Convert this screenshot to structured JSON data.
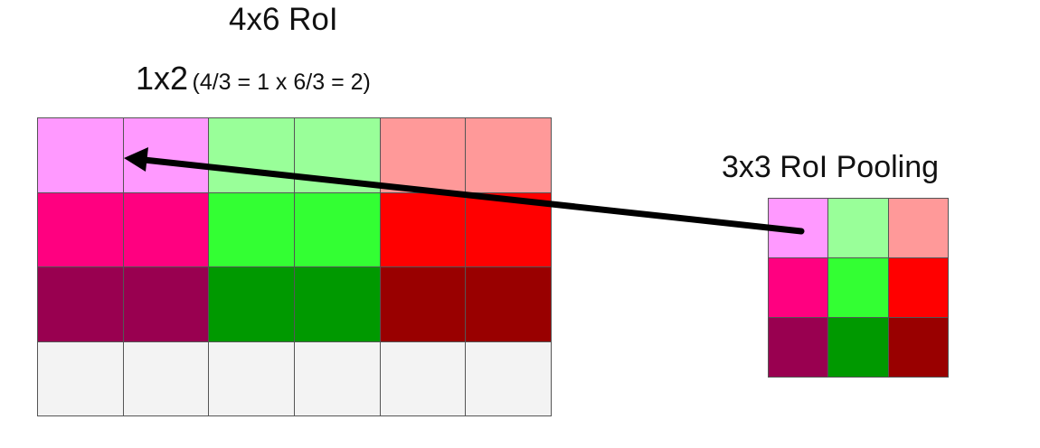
{
  "labels": {
    "roi_title": "4x6 RoI",
    "bin_size_main": "1x2",
    "bin_size_detail": "(4/3 = 1 x 6/3 = 2)",
    "pooling_title": "3x3 RoI Pooling"
  },
  "roi_grid": {
    "rows": 4,
    "cols": 6,
    "cells": [
      [
        "#ff99ff",
        "#ff99ff",
        "#99ff99",
        "#99ff99",
        "#ff9999",
        "#ff9999"
      ],
      [
        "#ff0080",
        "#ff0080",
        "#33ff33",
        "#33ff33",
        "#ff0000",
        "#ff0000"
      ],
      [
        "#990050",
        "#990050",
        "#009900",
        "#009900",
        "#990000",
        "#990000"
      ],
      [
        "#f3f3f3",
        "#f3f3f3",
        "#f3f3f3",
        "#f3f3f3",
        "#f3f3f3",
        "#f3f3f3"
      ]
    ]
  },
  "pooled_grid": {
    "rows": 3,
    "cols": 3,
    "cells": [
      [
        "#ff99ff",
        "#99ff99",
        "#ff9999"
      ],
      [
        "#ff0080",
        "#33ff33",
        "#ff0000"
      ],
      [
        "#990050",
        "#009900",
        "#990000"
      ]
    ]
  },
  "arrow": {
    "from": "pooled_grid.cell.0.0",
    "to": "roi_grid.bin.0.0",
    "color": "#000000"
  }
}
